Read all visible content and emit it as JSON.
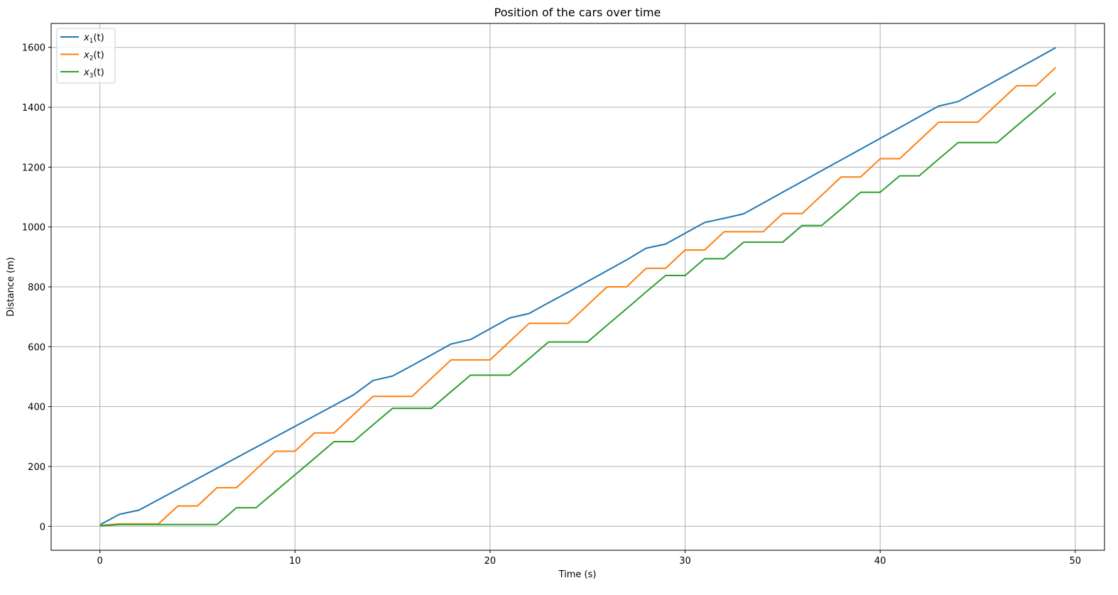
{
  "chart_data": {
    "type": "line",
    "title": "Position of the cars over time",
    "xlabel": "Time (s)",
    "ylabel": "Distance (m)",
    "xlim": [
      -2.5,
      51.5
    ],
    "ylim": [
      -80,
      1680
    ],
    "xticks": [
      0,
      10,
      20,
      30,
      40,
      50
    ],
    "yticks": [
      0,
      200,
      400,
      600,
      800,
      1000,
      1200,
      1400,
      1600
    ],
    "xtick_labels": [
      "0",
      "10",
      "20",
      "30",
      "40",
      "50"
    ],
    "ytick_labels": [
      "0",
      "200",
      "400",
      "600",
      "800",
      "1000",
      "1200",
      "1400",
      "1600"
    ],
    "grid": true,
    "legend_position": "top-left",
    "x": [
      0,
      1,
      2,
      3,
      4,
      5,
      6,
      7,
      8,
      9,
      10,
      11,
      12,
      13,
      14,
      15,
      16,
      17,
      18,
      19,
      20,
      21,
      22,
      23,
      24,
      25,
      26,
      27,
      28,
      29,
      30,
      31,
      32,
      33,
      34,
      35,
      36,
      37,
      38,
      39,
      40,
      41,
      42,
      43,
      44,
      45,
      46,
      47,
      48,
      49
    ],
    "series": [
      {
        "name": "x",
        "subscript": "1",
        "suffix": "(t)",
        "color": "#1f77b4",
        "values": [
          5,
          40,
          54,
          89,
          124,
          159,
          194,
          229,
          264,
          299,
          334,
          369,
          404,
          439,
          487,
          502,
          537,
          573,
          609,
          624,
          660,
          696,
          711,
          747,
          782,
          818,
          854,
          890,
          929,
          943,
          979,
          1015,
          1029,
          1044,
          1080,
          1116,
          1152,
          1188,
          1224,
          1260,
          1296,
          1332,
          1368,
          1404,
          1419,
          1455,
          1491,
          1527,
          1563,
          1599
        ]
      },
      {
        "name": "x",
        "subscript": "2",
        "suffix": "(t)",
        "color": "#ff7f0e",
        "values": [
          3,
          8,
          8,
          8,
          68,
          68,
          129,
          129,
          190,
          251,
          251,
          312,
          312,
          373,
          434,
          434,
          434,
          495,
          556,
          556,
          556,
          617,
          678,
          678,
          678,
          739,
          800,
          800,
          862,
          862,
          923,
          923,
          984,
          984,
          984,
          1045,
          1045,
          1106,
          1167,
          1167,
          1228,
          1228,
          1289,
          1350,
          1350,
          1350,
          1411,
          1472,
          1472,
          1533
        ]
      },
      {
        "name": "x",
        "subscript": "3",
        "suffix": "(t)",
        "color": "#2ca02c",
        "values": [
          1,
          6,
          6,
          6,
          6,
          6,
          6,
          62,
          62,
          117,
          172,
          227,
          283,
          283,
          339,
          394,
          394,
          394,
          450,
          505,
          505,
          505,
          560,
          616,
          616,
          616,
          672,
          727,
          783,
          838,
          838,
          894,
          894,
          949,
          949,
          949,
          1005,
          1005,
          1060,
          1116,
          1116,
          1171,
          1171,
          1227,
          1282,
          1282,
          1282,
          1338,
          1393,
          1449
        ]
      }
    ]
  }
}
